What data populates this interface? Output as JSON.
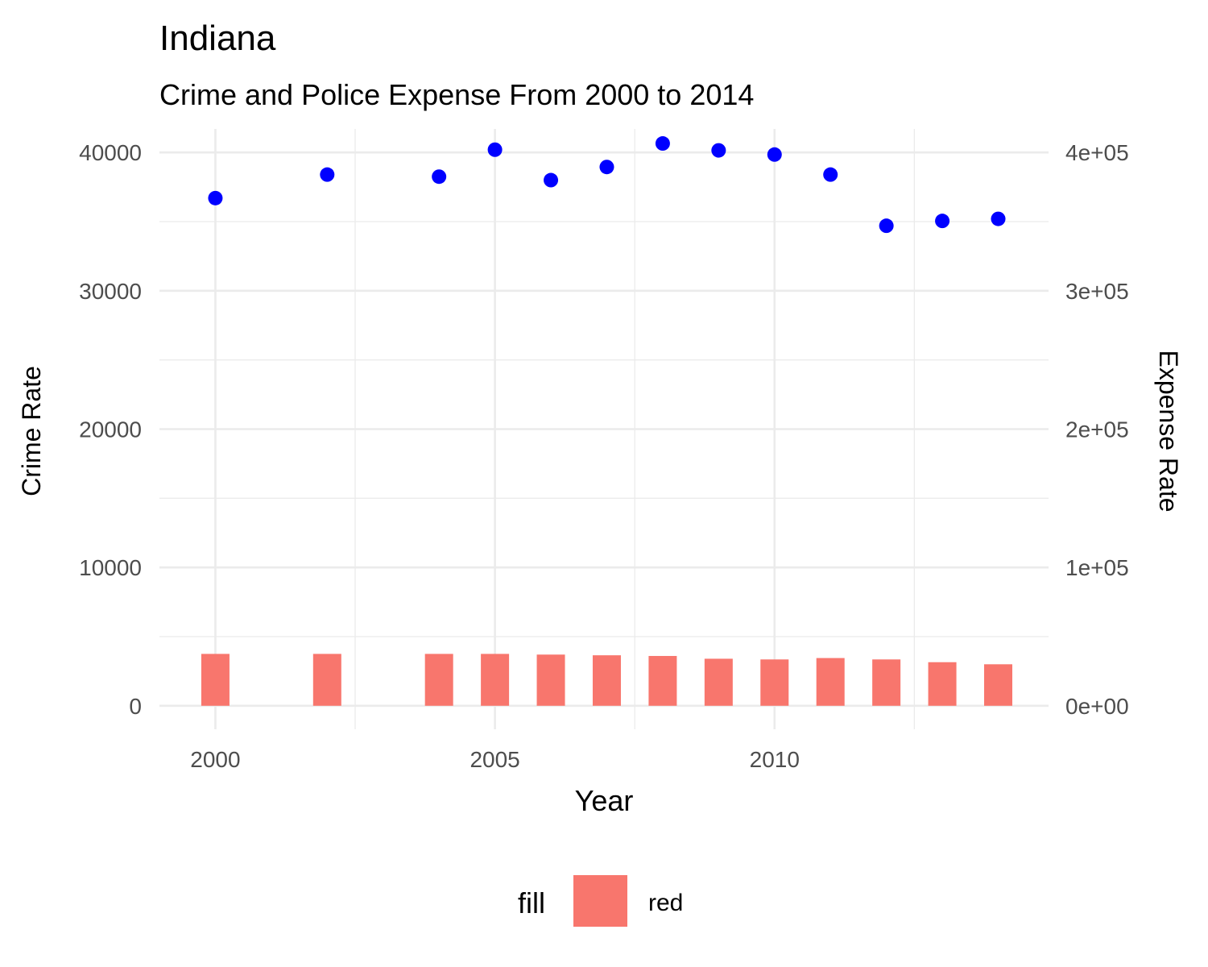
{
  "chart_data": {
    "type": "bar",
    "title": "Indiana",
    "subtitle": "Crime and Police Expense From 2000 to 2014",
    "xlabel": "Year",
    "ylabel_left": "Crime Rate",
    "ylabel_right": "Expense Rate",
    "xlim": [
      1999.0,
      2014.9
    ],
    "ylim_left": [
      -1700,
      41700
    ],
    "ylim_right": [
      -17000,
      417000
    ],
    "x_ticks": [
      2000,
      2005,
      2010
    ],
    "x_tick_labels": [
      "2000",
      "2005",
      "2010"
    ],
    "y_left_ticks": [
      0,
      10000,
      20000,
      30000,
      40000
    ],
    "y_left_tick_labels": [
      "0",
      "10000",
      "20000",
      "30000",
      "40000"
    ],
    "y_right_ticks": [
      0,
      100000,
      200000,
      300000,
      400000
    ],
    "y_right_tick_labels": [
      "0e+00",
      "1e+05",
      "2e+05",
      "3e+05",
      "4e+05"
    ],
    "grid": true,
    "legend_position": "bottom",
    "legend": {
      "title": "fill",
      "entries": [
        {
          "label": "red",
          "color": "#F8766D"
        }
      ]
    },
    "series": [
      {
        "kind": "bar",
        "axis": "left",
        "color": "#F8766D",
        "x": [
          2000,
          2002,
          2004,
          2005,
          2006,
          2007,
          2008,
          2009,
          2010,
          2011,
          2012,
          2013,
          2014
        ],
        "values": [
          3750,
          3750,
          3750,
          3750,
          3700,
          3650,
          3600,
          3400,
          3350,
          3450,
          3350,
          3150,
          3000
        ]
      },
      {
        "kind": "scatter",
        "axis": "right",
        "color": "#0000FF",
        "x": [
          2000,
          2002,
          2004,
          2005,
          2006,
          2007,
          2008,
          2009,
          2010,
          2011,
          2012,
          2013,
          2014
        ],
        "values": [
          367000,
          384000,
          382500,
          402000,
          380000,
          389500,
          406500,
          401500,
          398500,
          384000,
          347000,
          350500,
          352000
        ]
      }
    ]
  }
}
